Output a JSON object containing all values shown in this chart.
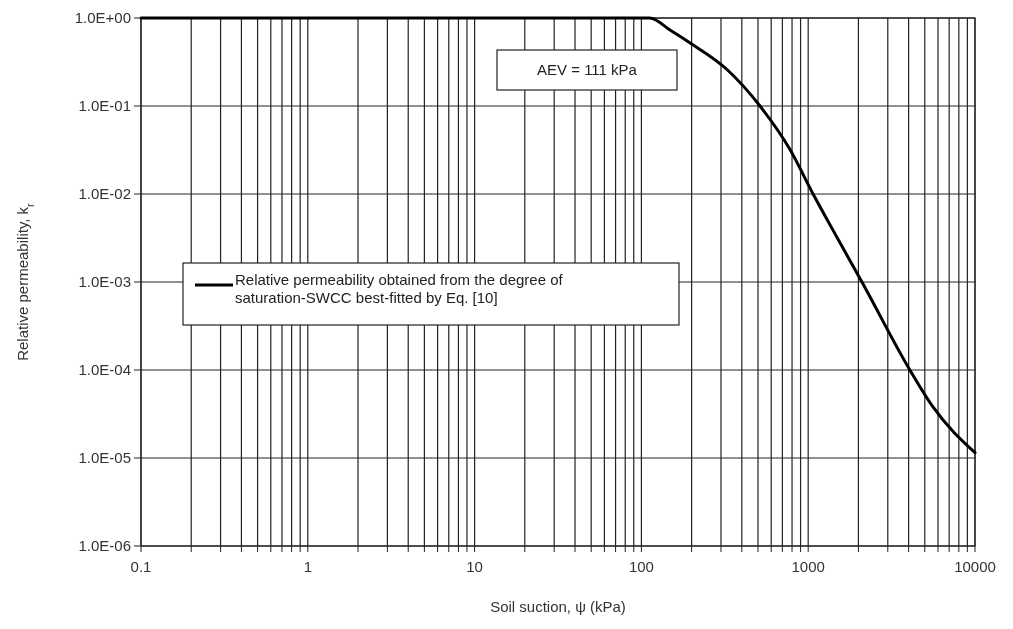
{
  "chart_data": {
    "type": "line",
    "xlabel": "Soil suction, ψ (kPa)",
    "ylabel": "Relative permeability, k$_{r}$",
    "log": "xy",
    "grid": true,
    "legend": "left",
    "marker": "none",
    "line_style": "solid",
    "xlim": [
      0.1,
      10000
    ],
    "ylim": [
      1e-06,
      1
    ],
    "xticks": [
      0.1,
      {
        "value": 0.2,
        "label": null
      },
      {
        "value": 0.3,
        "label": null
      },
      {
        "value": 0.4,
        "label": null
      },
      {
        "value": 0.5,
        "label": null
      },
      {
        "value": 0.6,
        "label": null
      },
      {
        "value": 0.7,
        "label": null
      },
      {
        "value": 0.8,
        "label": null
      },
      {
        "value": 0.9,
        "label": null
      },
      1,
      {
        "value": 2,
        "label": null
      },
      {
        "value": 3,
        "label": null
      },
      {
        "value": 4,
        "label": null
      },
      {
        "value": 5,
        "label": null
      },
      {
        "value": 6,
        "label": null
      },
      {
        "value": 7,
        "label": null
      },
      {
        "value": 8,
        "label": null
      },
      {
        "value": 9,
        "label": null
      },
      10,
      {
        "value": 20,
        "label": null
      },
      {
        "value": 30,
        "label": null
      },
      {
        "value": 40,
        "label": null
      },
      {
        "value": 50,
        "label": null
      },
      {
        "value": 60,
        "label": null
      },
      {
        "value": 70,
        "label": null
      },
      {
        "value": 80,
        "label": null
      },
      {
        "value": 90,
        "label": null
      },
      100,
      {
        "value": 200,
        "label": null
      },
      {
        "value": 300,
        "label": null
      },
      {
        "value": 400,
        "label": null
      },
      {
        "value": 500,
        "label": null
      },
      {
        "value": 600,
        "label": null
      },
      {
        "value": 700,
        "label": null
      },
      {
        "value": 800,
        "label": null
      },
      {
        "value": 900,
        "label": null
      },
      1000,
      {
        "value": 2000,
        "label": null
      },
      {
        "value": 3000,
        "label": null
      },
      {
        "value": 4000,
        "label": null
      },
      {
        "value": 5000,
        "label": null
      },
      {
        "value": 6000,
        "label": null
      },
      {
        "value": 7000,
        "label": null
      },
      {
        "value": 8000,
        "label": null
      },
      {
        "value": 9000,
        "label": null
      },
      10000
    ],
    "yticks": [
      {
        "value": 1e-06,
        "label": "1.0E-06"
      },
      {
        "value": 1e-05,
        "label": "1.0E-05"
      },
      {
        "value": 0.0001,
        "label": "1.0E-04"
      },
      {
        "value": 0.001,
        "label": "1.0E-03"
      },
      {
        "value": 0.01,
        "label": "1.0E-02"
      },
      {
        "value": 0.1,
        "label": "1.0E-01"
      },
      {
        "value": 1,
        "label": "1.0E+00"
      }
    ],
    "annotations": [
      "AEV = 111 kPa"
    ],
    "series": [
      {
        "name": "Relative permeability obtained from the degree of saturation-SWCC best-fitted by Eq. [10]",
        "color": "#000000",
        "x": [
          0.1,
          112,
          150,
          196,
          326,
          514,
          778,
          1070,
          1490,
          2100,
          4070,
          5600,
          10000
        ],
        "values": [
          1,
          1,
          0.72,
          0.52,
          0.26,
          0.1,
          0.032,
          0.01,
          0.0032,
          0.001,
          0.0001,
          3.8e-05,
          1.15e-05
        ]
      }
    ]
  }
}
